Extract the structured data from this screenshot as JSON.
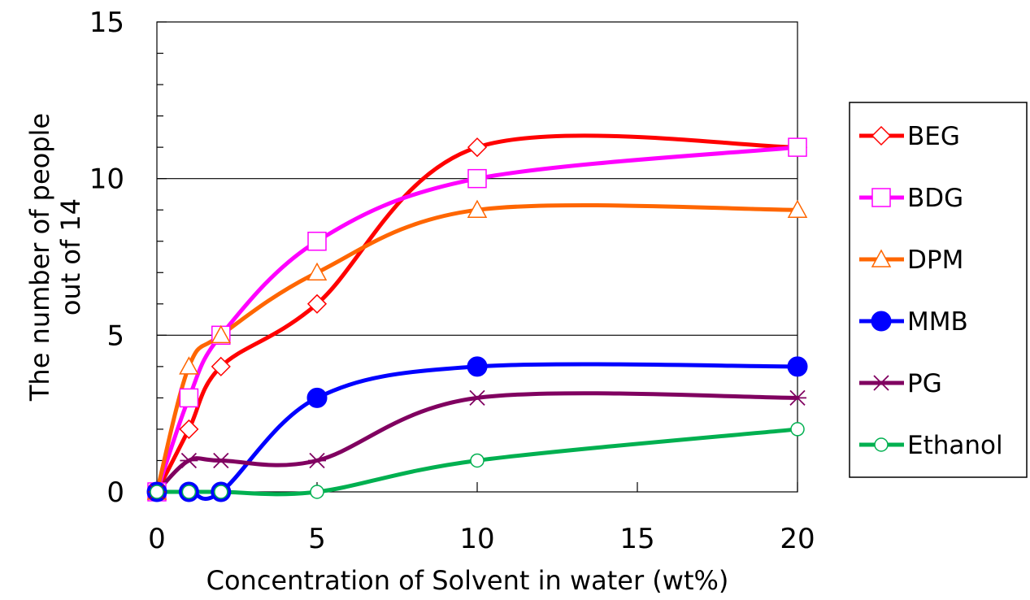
{
  "chart_data": {
    "type": "line",
    "xlabel": "Concentration of Solvent in water (wt%)",
    "ylabel_lines": [
      "The number of people",
      "out of 14"
    ],
    "xlim": [
      0,
      20
    ],
    "ylim": [
      0,
      15
    ],
    "x_ticks": [
      0,
      5,
      10,
      15,
      20
    ],
    "y_ticks": [
      0,
      5,
      10,
      15
    ],
    "y_minor_step": 1,
    "grid": "horizontal major gridlines at 5 and 10",
    "legend_position": "right",
    "series": [
      {
        "name": "BEG",
        "color": "#ff0000",
        "marker": "diamond",
        "x": [
          0,
          1,
          2,
          5,
          10,
          20
        ],
        "y": [
          0,
          2,
          4,
          6,
          11,
          11
        ]
      },
      {
        "name": "BDG",
        "color": "#ff00ff",
        "marker": "square",
        "x": [
          0,
          1,
          2,
          5,
          10,
          20
        ],
        "y": [
          0,
          3,
          5,
          8,
          10,
          11
        ]
      },
      {
        "name": "DPM",
        "color": "#ff6600",
        "marker": "triangle",
        "x": [
          0,
          1,
          2,
          5,
          10,
          20
        ],
        "y": [
          0,
          4,
          5,
          7,
          9,
          9
        ]
      },
      {
        "name": "MMB",
        "color": "#0000ff",
        "marker": "filled-circle",
        "x": [
          0,
          1,
          2,
          5,
          10,
          20
        ],
        "y": [
          0,
          0,
          0,
          3,
          4,
          4
        ]
      },
      {
        "name": "PG",
        "color": "#800060",
        "marker": "asterisk",
        "x": [
          0,
          1,
          2,
          5,
          10,
          20
        ],
        "y": [
          0,
          1,
          1,
          1,
          3,
          3
        ]
      },
      {
        "name": "Ethanol",
        "color": "#00b050",
        "marker": "open-circle",
        "x": [
          0,
          1,
          2,
          5,
          10,
          20
        ],
        "y": [
          0,
          0,
          0,
          0,
          1,
          2
        ]
      }
    ]
  }
}
